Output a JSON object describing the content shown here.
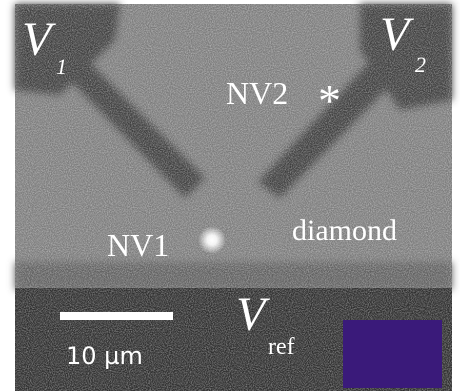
{
  "labels": {
    "v1": {
      "main": "V",
      "sub": "1"
    },
    "v2": {
      "main": "V",
      "sub": "2"
    },
    "vref": {
      "main": "V",
      "sub": "ref"
    },
    "nv1": "NV1",
    "nv2": "NV2",
    "nv2_marker": "*",
    "material": "diamond"
  },
  "scale_bar": "10 µm"
}
